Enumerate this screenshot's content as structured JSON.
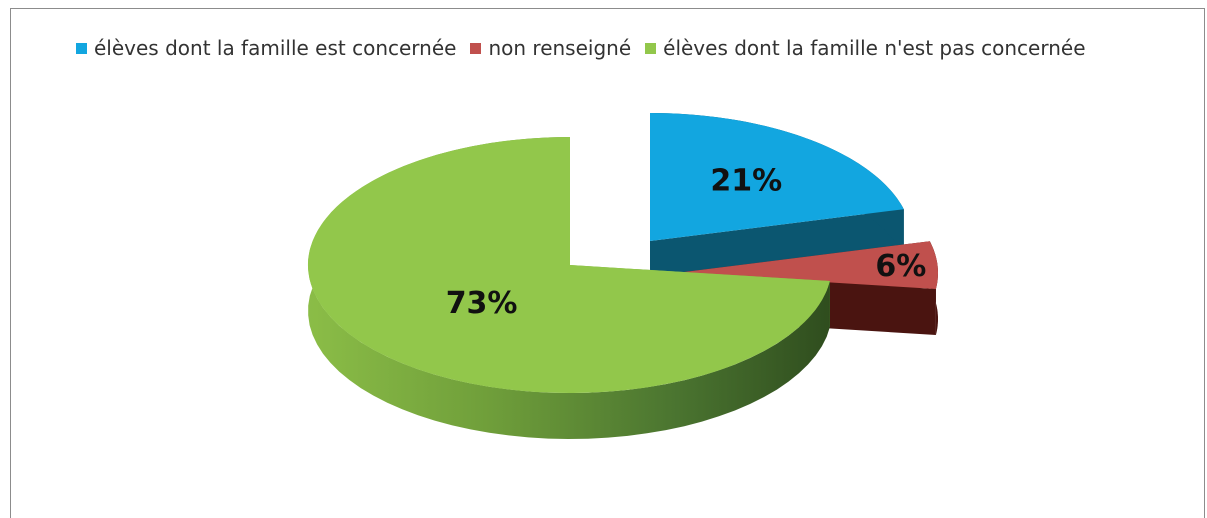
{
  "chart_data": {
    "type": "pie",
    "style": "3d-exploded",
    "legend_position": "top",
    "categories": [
      "élèves dont la famille est concernée",
      "non renseigné",
      "élèves dont la famille n'est pas concernée"
    ],
    "values": [
      21,
      6,
      73
    ],
    "labels": [
      "21%",
      "6%",
      "73%"
    ],
    "colors": [
      "#12a6e0",
      "#c0504d",
      "#92c74b"
    ]
  }
}
